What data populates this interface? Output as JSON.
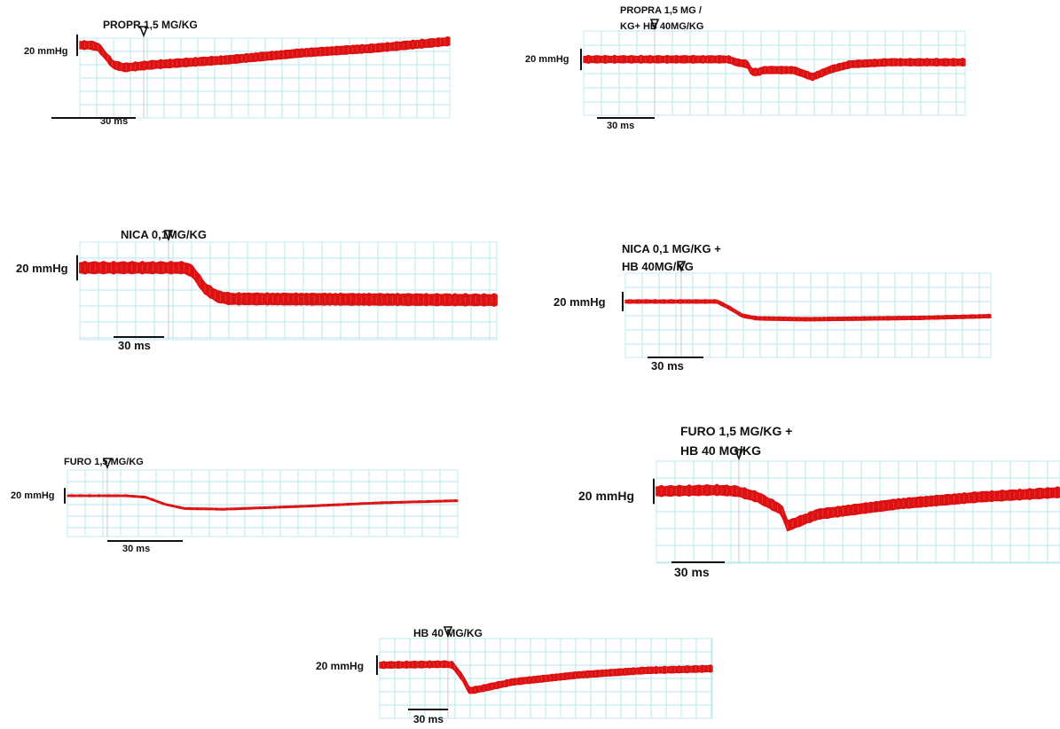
{
  "figure": {
    "trace_color": "#dd1111",
    "grid_color": "#b9e6ee",
    "marker_icon": "arrow-down-triangle-icon"
  },
  "chart_data": [
    {
      "type": "line",
      "id": "propr",
      "title_lines": [
        "PROPR 1,5 MG/KG"
      ],
      "scale_label": "20 mmHg",
      "time_bar_label": "30 ms",
      "series": [
        {
          "x": [
            0,
            3,
            5,
            7,
            9,
            12,
            20,
            40,
            60,
            80,
            100
          ],
          "y": [
            0,
            0,
            -0.2,
            -1.1,
            -2,
            -2.3,
            -2,
            -1.5,
            -0.8,
            -0.3,
            0.4
          ]
        }
      ],
      "noise": 0.35
    },
    {
      "type": "line",
      "id": "propra-hb",
      "title_lines": [
        "PROPRA 1,5 MG /",
        "KG+ HB 40MG/KG"
      ],
      "scale_label": "20 mmHg",
      "time_bar_label": "30 ms",
      "series": [
        {
          "x": [
            0,
            10,
            30,
            38,
            40,
            43,
            44,
            46,
            47,
            55,
            60,
            65,
            70,
            80,
            100
          ],
          "y": [
            0,
            0,
            0,
            0,
            -0.3,
            -0.5,
            -1.3,
            -1.3,
            -1.1,
            -1.1,
            -1.8,
            -1.0,
            -0.5,
            -0.3,
            -0.3
          ]
        }
      ],
      "noise": 0.3
    },
    {
      "type": "line",
      "id": "nica",
      "title_lines": [
        "NICA 0,1MG/KG"
      ],
      "scale_label": "20 mmHg",
      "time_bar_label": "30 ms",
      "series": [
        {
          "x": [
            0,
            15,
            25,
            27,
            30,
            33,
            36,
            100
          ],
          "y": [
            0,
            0,
            0,
            -0.3,
            -1.8,
            -2.5,
            -2.7,
            -2.8
          ]
        }
      ],
      "noise": 0.4
    },
    {
      "type": "line",
      "id": "nica-hb",
      "title_lines": [
        "NICA 0,1 MG/KG +",
        "HB 40MG/KG"
      ],
      "scale_label": "20 mmHg",
      "time_bar_label": "30 ms",
      "series": [
        {
          "x": [
            0,
            20,
            25,
            28,
            32,
            36,
            50,
            80,
            100
          ],
          "y": [
            0,
            0,
            0,
            -0.6,
            -1.6,
            -1.9,
            -2,
            -1.85,
            -1.65
          ]
        }
      ],
      "noise": 0.15
    },
    {
      "type": "line",
      "id": "furo",
      "title_lines": [
        "FURO 1,5 MG/KG"
      ],
      "scale_label": "20 mmHg",
      "time_bar_label": "30 ms",
      "series": [
        {
          "x": [
            0,
            15,
            20,
            25,
            30,
            40,
            60,
            80,
            100
          ],
          "y": [
            0,
            0,
            -0.2,
            -1.2,
            -1.8,
            -1.9,
            -1.5,
            -1.0,
            -0.7
          ]
        }
      ],
      "noise": 0.1
    },
    {
      "type": "line",
      "id": "furo-hb",
      "title_lines": [
        "FURO 1,5 MG/KG +",
        "HB 40 MG/KG"
      ],
      "scale_label": "20 mmHg",
      "time_bar_label": "30 ms",
      "series": [
        {
          "x": [
            0,
            15,
            20,
            25,
            31,
            32.5,
            34,
            40,
            60,
            80,
            100
          ],
          "y": [
            0,
            0.1,
            0,
            -0.5,
            -1.6,
            -3,
            -2.8,
            -2.0,
            -1.1,
            -0.5,
            -0.1
          ]
        }
      ],
      "noise": 0.35
    },
    {
      "type": "line",
      "id": "hb",
      "title_lines": [
        "HB 40 MG/KG"
      ],
      "scale_label": "20 mmHg",
      "time_bar_label": "30 ms",
      "series": [
        {
          "x": [
            0,
            20,
            22,
            25,
            27,
            30,
            40,
            60,
            80,
            100
          ],
          "y": [
            0,
            0.1,
            0,
            -1.5,
            -2.9,
            -2.7,
            -1.9,
            -1.1,
            -0.6,
            -0.4
          ]
        }
      ],
      "noise": 0.3
    }
  ]
}
